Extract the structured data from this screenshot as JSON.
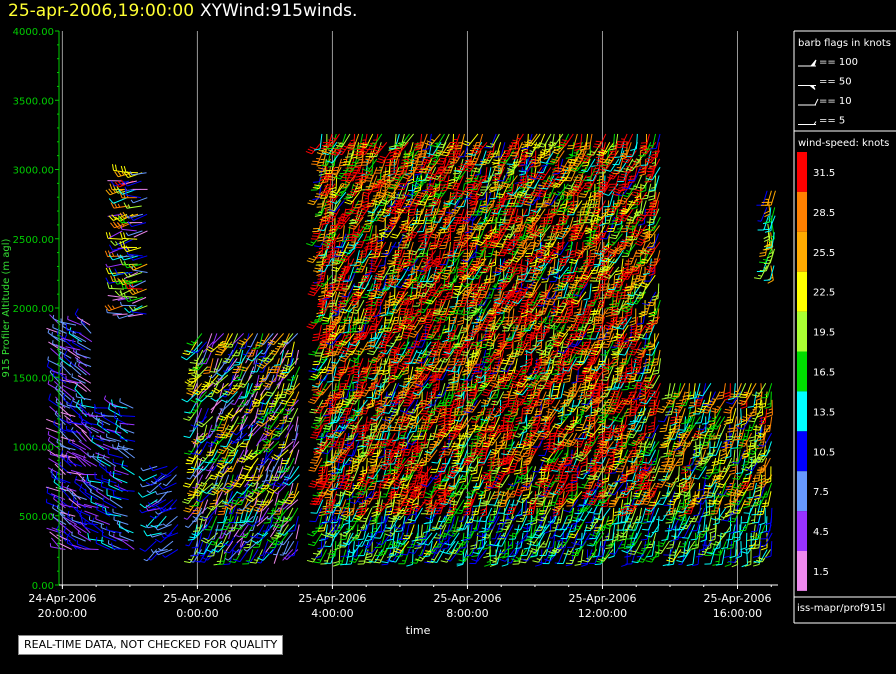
{
  "title": {
    "date": "25-apr-2006,19:00:00",
    "name": "XYWind:915winds."
  },
  "footer_note": "REAL-TIME DATA, NOT CHECKED FOR QUALITY",
  "source_label": "iss-mapr/prof915l",
  "colors": {
    "background": "#000000",
    "axis": "#00cc00",
    "frame": "#ffffff",
    "title_date": "#ffff33"
  },
  "chart_data": {
    "type": "scatter",
    "title": "XYWind:915winds.",
    "xlabel": "time",
    "ylabel": "915 Profiler Altitude (m agl)",
    "ylim": [
      0,
      4000
    ],
    "xlim_hours": [
      -1.1,
      20.2
    ],
    "x_ticks": [
      {
        "hour": -1,
        "line1": "24-Apr-2006",
        "line2": "20:00:00"
      },
      {
        "hour": 3,
        "line1": "25-Apr-2006",
        "line2": "0:00:00"
      },
      {
        "hour": 7,
        "line1": "25-Apr-2006",
        "line2": "4:00:00"
      },
      {
        "hour": 11,
        "line1": "25-Apr-2006",
        "line2": "8:00:00"
      },
      {
        "hour": 15,
        "line1": "25-Apr-2006",
        "line2": "12:00:00"
      },
      {
        "hour": 19,
        "line1": "25-Apr-2006",
        "line2": "16:00:00"
      }
    ],
    "y_ticks": [
      {
        "value": 0,
        "label": "0.00"
      },
      {
        "value": 500,
        "label": "500.00"
      },
      {
        "value": 1000,
        "label": "1000.00"
      },
      {
        "value": 1500,
        "label": "1500.00"
      },
      {
        "value": 2000,
        "label": "2000.00"
      },
      {
        "value": 2500,
        "label": "2500.00"
      },
      {
        "value": 3000,
        "label": "3000.00"
      },
      {
        "value": 3500,
        "label": "3500.00"
      },
      {
        "value": 4000,
        "label": "4000.00"
      }
    ],
    "grid": "vertical-at-ticks",
    "barb_legend": {
      "title": "barb flags in knots",
      "entries": [
        "== 100",
        "== 50",
        "== 10",
        "== 5"
      ]
    },
    "speed_legend": {
      "title": "wind-speed: knots",
      "bins": [
        {
          "label": "31.5",
          "color": "#ff0000"
        },
        {
          "label": "28.5",
          "color": "#ff8000"
        },
        {
          "label": "25.5",
          "color": "#ffaa00"
        },
        {
          "label": "22.5",
          "color": "#ffff00"
        },
        {
          "label": "19.5",
          "color": "#aaff33"
        },
        {
          "label": "16.5",
          "color": "#00dd00"
        },
        {
          "label": "13.5",
          "color": "#00ffff"
        },
        {
          "label": "10.5",
          "color": "#0000ff"
        },
        {
          "label": "7.5",
          "color": "#6699ff"
        },
        {
          "label": "4.5",
          "color": "#9933ff"
        },
        {
          "label": "1.5",
          "color": "#ee88ee"
        }
      ]
    },
    "profile_groups": [
      {
        "hour_start": -1.05,
        "hour_end": -0.1,
        "step_h": 0.15,
        "alt_min": 300,
        "alt_max": 1950,
        "alt_step": 60,
        "speed_base": 6,
        "speed_jitter": 6,
        "dir": 300
      },
      {
        "hour_start": 0.05,
        "hour_end": 1.15,
        "step_h": 0.18,
        "alt_min": 300,
        "alt_max": 1350,
        "alt_step": 60,
        "speed_base": 8,
        "speed_jitter": 5,
        "dir": 290
      },
      {
        "hour_start": 0.8,
        "hour_end": 1.5,
        "step_h": 0.14,
        "alt_min": 2000,
        "alt_max": 3050,
        "alt_step": 60,
        "speed_base": 14,
        "speed_jitter": 16,
        "dir": 260
      },
      {
        "hour_start": 1.8,
        "hour_end": 2.4,
        "step_h": 0.15,
        "alt_min": 300,
        "alt_max": 950,
        "alt_step": 60,
        "speed_base": 8,
        "speed_jitter": 4,
        "dir": 240
      },
      {
        "hour_start": 3.0,
        "hour_end": 6.0,
        "step_h": 0.15,
        "alt_min": 300,
        "alt_max": 1900,
        "alt_step": 60,
        "speed_base": 13,
        "speed_jitter": 14,
        "dir": 210
      },
      {
        "hour_start": 6.7,
        "hour_end": 16.8,
        "step_h": 0.135,
        "alt_min": 300,
        "alt_max": 3300,
        "alt_step": 60,
        "speed_base": 24,
        "speed_jitter": 14,
        "dir": 200
      },
      {
        "hour_start": 17.0,
        "hour_end": 20.0,
        "step_h": 0.15,
        "alt_min": 300,
        "alt_max": 1500,
        "alt_step": 60,
        "speed_base": 20,
        "speed_jitter": 10,
        "dir": 195
      },
      {
        "hour_start": 19.9,
        "hour_end": 20.1,
        "step_h": 0.1,
        "alt_min": 2350,
        "alt_max": 2900,
        "alt_step": 60,
        "speed_base": 17,
        "speed_jitter": 8,
        "dir": 190
      }
    ]
  }
}
